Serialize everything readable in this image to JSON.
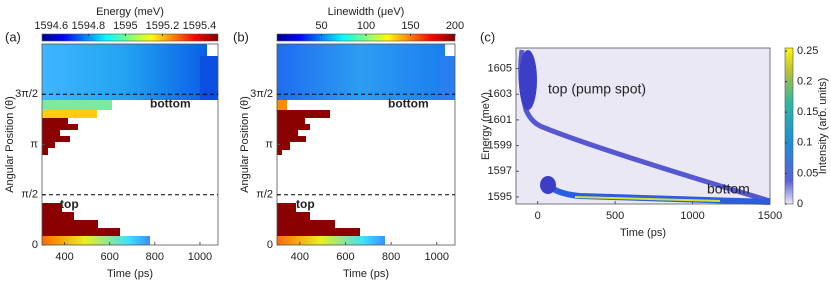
{
  "chart_data": [
    {
      "type": "heatmap",
      "panel_label": "(a)",
      "colorbar_label": "Energy (meV)",
      "xlabel": "Time (ps)",
      "ylabel": "Angular Position (θ)",
      "xlim": [
        300,
        1080
      ],
      "xticks": [
        400,
        600,
        800,
        1000
      ],
      "ylim": [
        0,
        6.2832
      ],
      "yticks": [
        0,
        {
          "value": 1.5708,
          "label": "π/2"
        },
        {
          "value": 3.1416,
          "label": "π"
        },
        {
          "value": 4.7124,
          "label": "3π/2"
        }
      ],
      "clim": [
        1594.55,
        1595.5
      ],
      "cticks": [
        1594.6,
        1594.8,
        1595,
        1595.2,
        1595.4
      ],
      "colormap": "jet",
      "annotations": [
        {
          "text": "bottom",
          "y": 4.7124
        },
        {
          "text": "top",
          "y": 1.5708
        }
      ]
    },
    {
      "type": "heatmap",
      "panel_label": "(b)",
      "colorbar_label": "Linewidth (μeV)",
      "xlabel": "Time (ps)",
      "ylabel": "Angular Position (θ)",
      "xlim": [
        300,
        1080
      ],
      "xticks": [
        400,
        600,
        800,
        1000
      ],
      "ylim": [
        0,
        6.2832
      ],
      "yticks": [
        0,
        {
          "value": 1.5708,
          "label": "π/2"
        },
        {
          "value": 3.1416,
          "label": "π"
        },
        {
          "value": 4.7124,
          "label": "3π/2"
        }
      ],
      "clim": [
        0,
        200
      ],
      "cticks": [
        50,
        100,
        150,
        200
      ],
      "colormap": "jet",
      "annotations": [
        {
          "text": "bottom",
          "y": 4.7124
        },
        {
          "text": "top",
          "y": 1.5708
        }
      ]
    },
    {
      "type": "heatmap",
      "panel_label": "(c)",
      "colorbar_label": "Intensity (arb. units)",
      "xlabel": "Time (ps)",
      "ylabel": "Energy (meV)",
      "xlim": [
        -140,
        1500
      ],
      "xticks": [
        0,
        500,
        1000,
        1500
      ],
      "ylim": [
        1594.45,
        1606.6
      ],
      "yticks": [
        1595,
        1597,
        1599,
        1601,
        1603,
        1605
      ],
      "clim": [
        0,
        0.255
      ],
      "cticks": [
        0,
        0.05,
        0.1,
        0.15,
        0.2,
        0.25
      ],
      "colormap": "parula",
      "annotations": [
        {
          "text": "top (pump spot)"
        },
        {
          "text": "bottom"
        }
      ]
    }
  ]
}
